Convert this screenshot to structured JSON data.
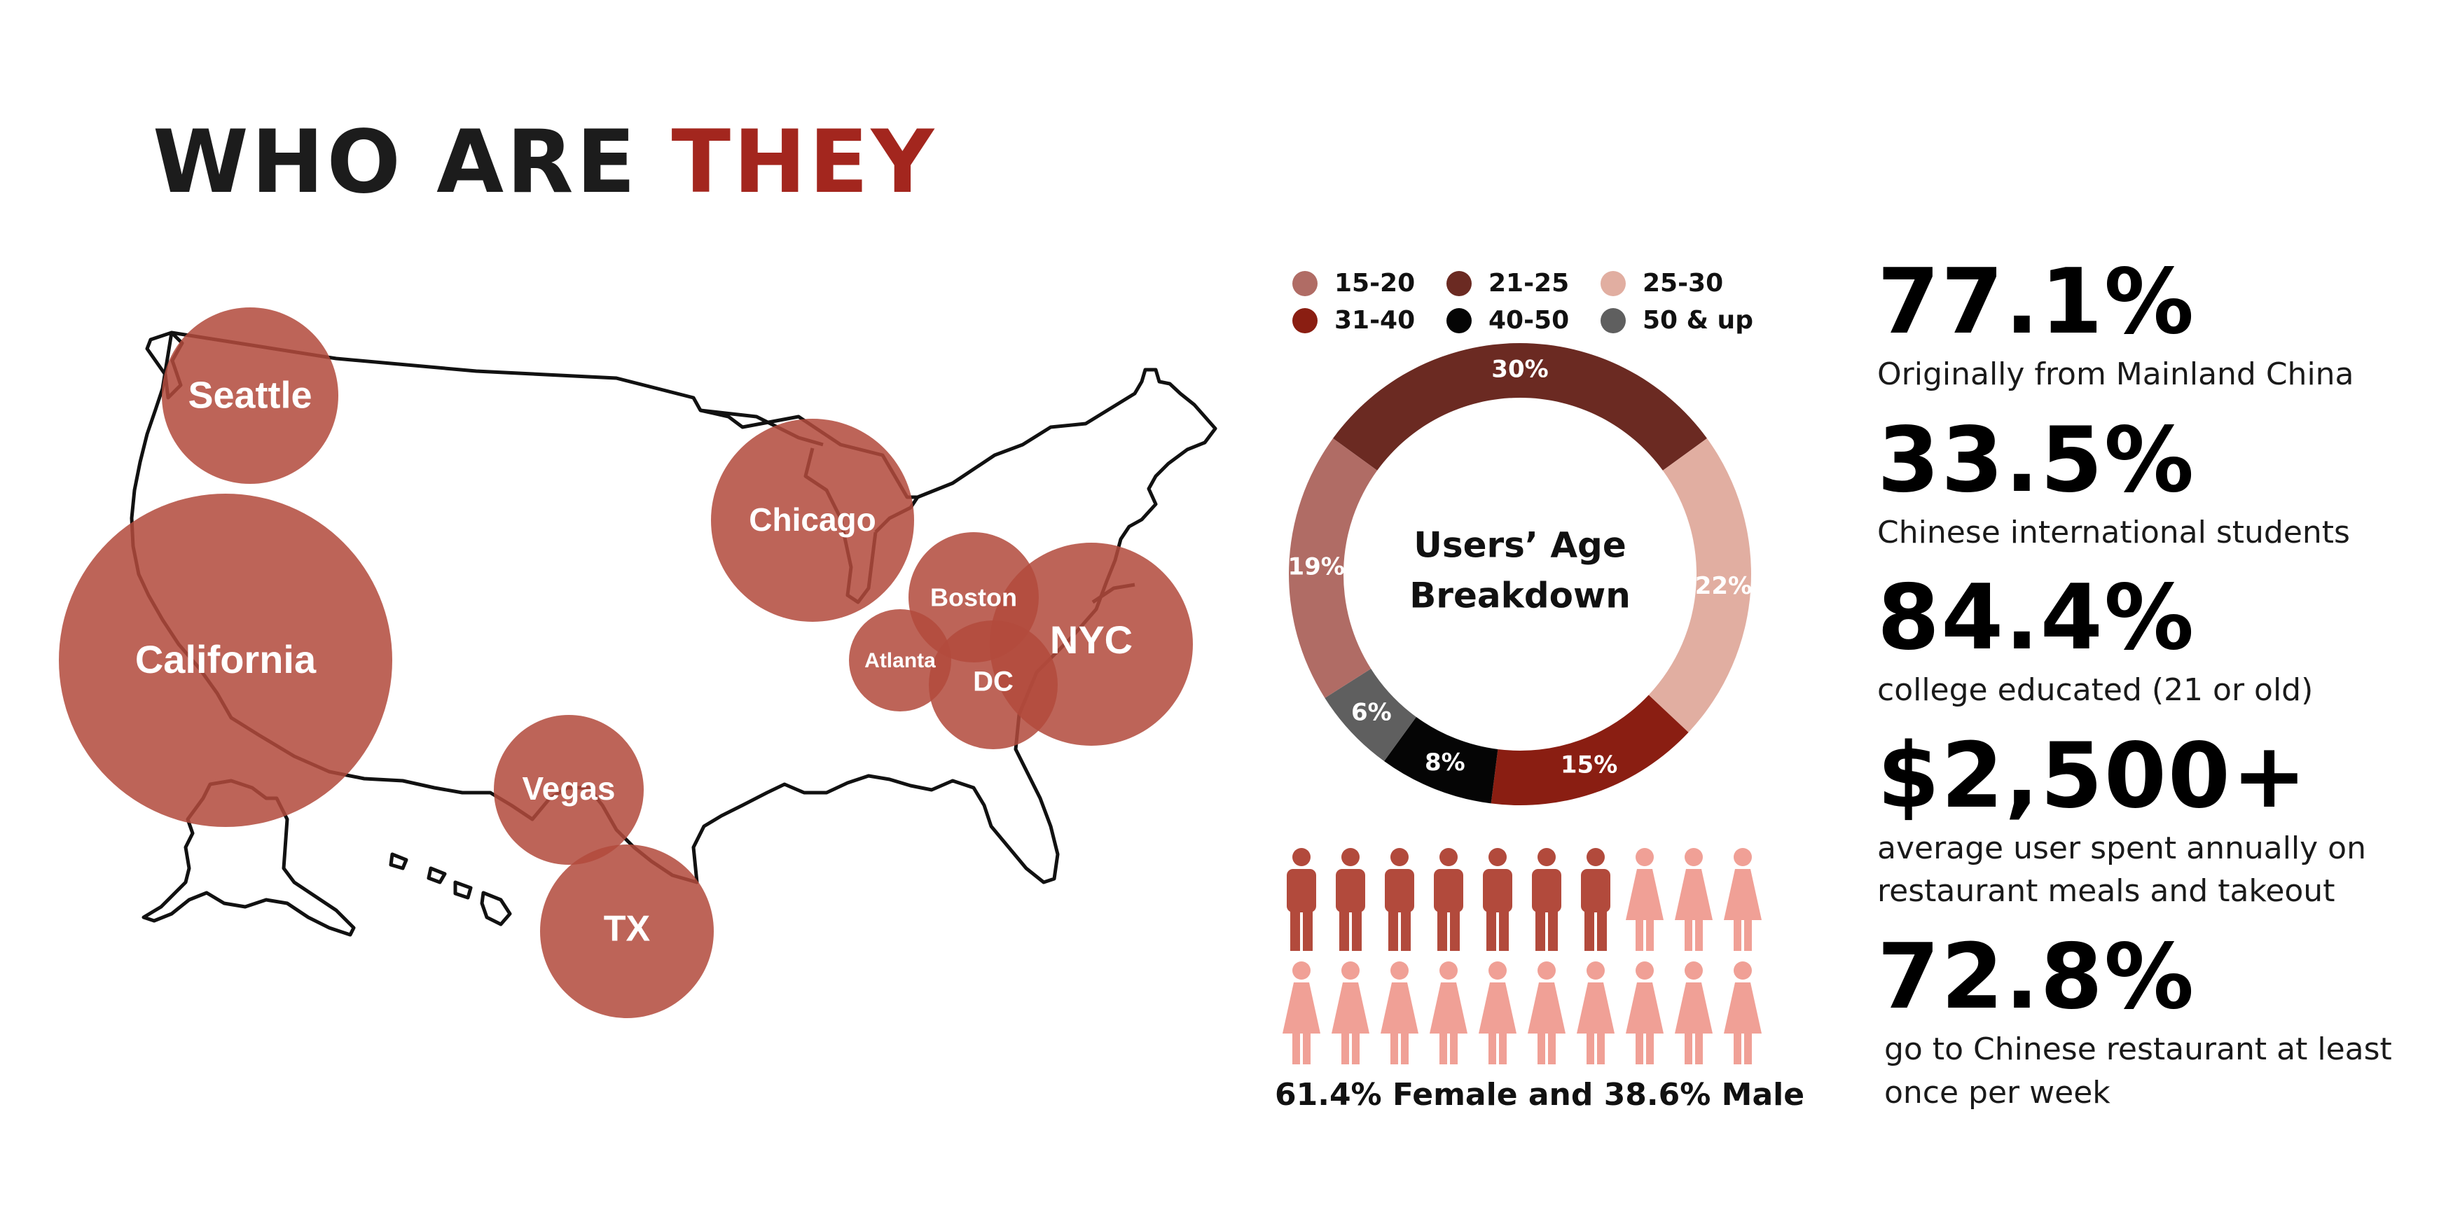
{
  "header": {
    "title_part1": "WHO ARE",
    "title_part2": "THEY",
    "accent_color": "#a3261e"
  },
  "locations": {
    "color": "#b24a3c",
    "items": [
      {
        "name": "Seattle"
      },
      {
        "name": "California"
      },
      {
        "name": "Chicago"
      },
      {
        "name": "Boston"
      },
      {
        "name": "NYC"
      },
      {
        "name": "Atlanta"
      },
      {
        "name": "DC"
      },
      {
        "name": "Vegas"
      },
      {
        "name": "TX"
      }
    ]
  },
  "age_breakdown": {
    "center_label_line1": "Users’ Age",
    "center_label_line2": "Breakdown",
    "legend": [
      {
        "label": "15-20",
        "color": "#b06c65"
      },
      {
        "label": "21-25",
        "color": "#6b2a22"
      },
      {
        "label": "25-30",
        "color": "#e1aea1"
      },
      {
        "label": "31-40",
        "color": "#8a1e12"
      },
      {
        "label": "40-50",
        "color": "#050505"
      },
      {
        "label": "50 & up",
        "color": "#5f5f5f"
      }
    ]
  },
  "chart_data": {
    "type": "pie",
    "title": "Users’ Age Breakdown",
    "categories": [
      "21-25",
      "25-30",
      "31-40",
      "40-50",
      "50 & up",
      "15-20"
    ],
    "values": [
      30,
      22,
      15,
      8,
      6,
      19
    ],
    "value_labels": [
      "30%",
      "22%",
      "15%",
      "8%",
      "6%",
      "19%"
    ],
    "colors": [
      "#6b2a22",
      "#e1aea1",
      "#8a1e12",
      "#050505",
      "#5f5f5f",
      "#b06c65"
    ],
    "legend_placement": "top"
  },
  "gender": {
    "caption": "61.4% Female and 38.6% Male",
    "male_icons": 7,
    "female_icons": 13,
    "male_color": "#b24a3c",
    "female_color": "#f0a096"
  },
  "stats": [
    {
      "value": "77.1%",
      "desc": "Originally from Mainland China"
    },
    {
      "value": "33.5%",
      "desc": "Chinese international students"
    },
    {
      "value": "84.4%",
      "desc": "college educated (21 or old)"
    },
    {
      "value": "$2,500+",
      "desc": "average user spent annually on restaurant meals and takeout"
    },
    {
      "value": "72.8%",
      "desc": "go to Chinese restaurant at least once per week"
    }
  ]
}
